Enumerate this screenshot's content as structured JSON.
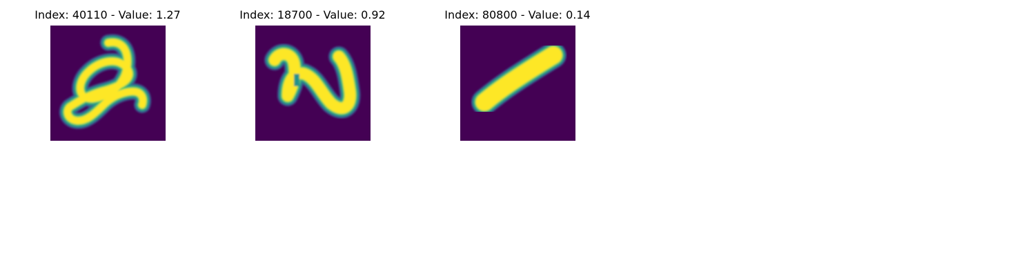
{
  "figure": {
    "panels": [
      {
        "title": "Index: 40110 - Value: 1.27",
        "image_alt": "handwritten digit resembling a 2",
        "colormap": "viridis"
      },
      {
        "title": "Index: 18700 - Value: 0.92",
        "image_alt": "handwritten digit resembling a 2",
        "colormap": "viridis"
      },
      {
        "title": "Index: 80800 - Value: 0.14",
        "image_alt": "handwritten digit resembling a 1",
        "colormap": "viridis"
      }
    ],
    "colors": {
      "background_low": "#440154",
      "edge_low": "#3b528b",
      "mid": "#21918c",
      "edge_high": "#5ec962",
      "foreground_high": "#fde725"
    }
  }
}
